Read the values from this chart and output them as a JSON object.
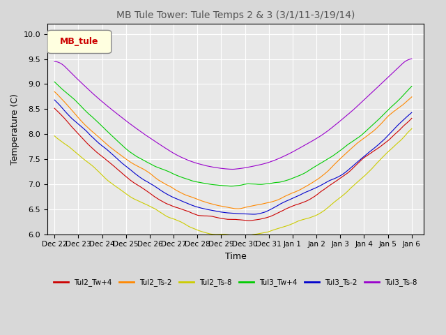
{
  "title": "MB Tule Tower: Tule Temps 2 & 3 (3/1/11-3/19/14)",
  "xlabel": "Time",
  "ylabel": "Temperature (C)",
  "legend_box_label": "MB_tule",
  "legend_entries": [
    "Tul2_Tw+4",
    "Tul2_Ts-2",
    "Tul2_Ts-8",
    "Tul3_Tw+4",
    "Tul3_Ts-2",
    "Tul3_Ts-8"
  ],
  "line_colors": [
    "#cc0000",
    "#ff8800",
    "#cccc00",
    "#00cc00",
    "#0000cc",
    "#9900cc"
  ],
  "xtick_labels": [
    "Dec 22",
    "Dec 23",
    "Dec 24",
    "Dec 25",
    "Dec 26",
    "Dec 27",
    "Dec 28",
    "Dec 29",
    "Dec 30",
    "Dec 31",
    "Jan 1",
    "Jan 2",
    "Jan 3",
    "Jan 4",
    "Jan 5",
    "Jan 6"
  ],
  "ylim": [
    6.0,
    10.2
  ],
  "yticks": [
    6.0,
    6.5,
    7.0,
    7.5,
    8.0,
    8.5,
    9.0,
    9.5,
    10.0
  ],
  "n_points": 500,
  "bg_color": "#e8e8e8",
  "plot_bg_color": "#e8e8e8"
}
